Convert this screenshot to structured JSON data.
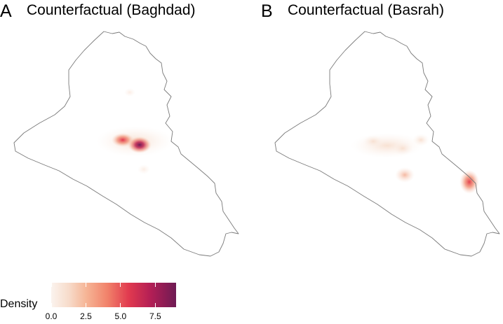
{
  "panels": [
    {
      "letter": "A",
      "title": "Counterfactual (Baghdad)"
    },
    {
      "letter": "B",
      "title": "Counterfactual (Basrah)"
    }
  ],
  "legend": {
    "title": "Density",
    "ticks": [
      "0.0",
      "2.5",
      "5.0",
      "7.5"
    ],
    "range": [
      0,
      9
    ],
    "colors": [
      "#fbf3ee",
      "#f6b596",
      "#f1826a",
      "#e13a4f",
      "#b21e55",
      "#6e1b54"
    ]
  },
  "colors": {
    "border": "#7a7a7a",
    "background": "#ffffff"
  }
}
